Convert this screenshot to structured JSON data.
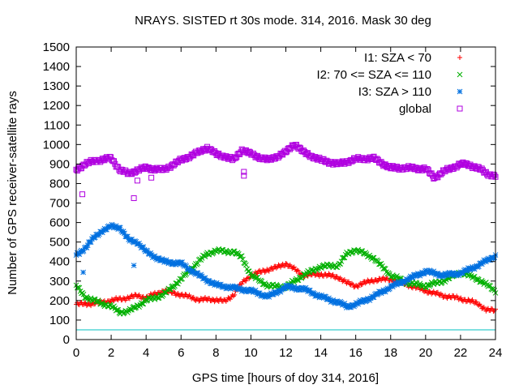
{
  "chart_data": {
    "type": "scatter",
    "title": "NRAYS. SISTED rt 30s mode. 314, 2016. Mask 30 deg",
    "xlabel": "GPS time [hours of doy 314, 2016]",
    "ylabel": "Number of GPS receiver-satellite rays",
    "xlim": [
      0,
      24
    ],
    "ylim": [
      0,
      1500
    ],
    "x_ticks": [
      "0",
      "2",
      "4",
      "6",
      "8",
      "10",
      "12",
      "14",
      "16",
      "18",
      "20",
      "22",
      "24"
    ],
    "y_ticks": [
      "0",
      "100",
      "200",
      "300",
      "400",
      "500",
      "600",
      "700",
      "800",
      "900",
      "1000",
      "1100",
      "1200",
      "1300",
      "1400",
      "1500"
    ],
    "grid": false,
    "legend_position": "top-right",
    "threshold_line": {
      "value": 50,
      "color": "#00c0c0"
    },
    "series": [
      {
        "name": "I1: SZA < 70",
        "color": "#ff0000",
        "marker": "plus",
        "x": [
          0,
          1,
          2,
          3,
          3.5,
          4,
          5,
          6,
          7,
          8,
          8.5,
          9,
          9.5,
          10,
          11,
          11.5,
          12,
          12.5,
          13,
          14,
          15,
          15.5,
          16,
          17,
          18,
          19,
          20,
          21,
          22,
          23,
          23.5,
          24
        ],
        "y": [
          180,
          185,
          200,
          215,
          225,
          215,
          250,
          230,
          205,
          205,
          195,
          230,
          290,
          330,
          360,
          370,
          390,
          360,
          330,
          335,
          320,
          290,
          275,
          305,
          310,
          280,
          250,
          225,
          210,
          185,
          150,
          150
        ]
      },
      {
        "name": "I2: 70 <= SZA <= 110",
        "color": "#00b000",
        "marker": "cross",
        "x": [
          0,
          0.5,
          1,
          2,
          2.5,
          3,
          4,
          5,
          6,
          7,
          7.5,
          8,
          9,
          9.5,
          10,
          11,
          12,
          13,
          14,
          15,
          15.5,
          16,
          17,
          18,
          19,
          20,
          21,
          22,
          23,
          24
        ],
        "y": [
          275,
          220,
          200,
          170,
          140,
          145,
          200,
          230,
          310,
          400,
          440,
          455,
          450,
          420,
          330,
          275,
          270,
          330,
          375,
          380,
          440,
          460,
          420,
          330,
          290,
          275,
          300,
          345,
          310,
          250
        ]
      },
      {
        "name": "I3: SZA > 110",
        "color": "#0070e0",
        "marker": "star",
        "x": [
          0,
          0.5,
          1,
          1.5,
          2,
          2.5,
          3,
          3.5,
          4,
          5,
          6,
          7,
          8,
          9,
          10,
          11,
          12,
          13,
          14,
          15,
          15.5,
          16,
          17,
          18,
          19,
          20,
          21,
          22,
          23,
          24
        ],
        "y": [
          430,
          470,
          520,
          560,
          580,
          575,
          510,
          500,
          450,
          400,
          390,
          330,
          280,
          265,
          250,
          220,
          270,
          260,
          220,
          190,
          170,
          180,
          220,
          270,
          310,
          350,
          330,
          340,
          380,
          430
        ]
      },
      {
        "name": "global",
        "color": "#b000e0",
        "marker": "square",
        "x": [
          0,
          0.5,
          1,
          2,
          2.5,
          3,
          3.5,
          4,
          5,
          6,
          7,
          7.5,
          8,
          8.5,
          9,
          9.5,
          10,
          11,
          12,
          12.5,
          13,
          14,
          15,
          16,
          17,
          18,
          19,
          20,
          20.5,
          21,
          22,
          22.5,
          23,
          23.5,
          24
        ],
        "y": [
          870,
          900,
          915,
          930,
          870,
          850,
          870,
          880,
          870,
          920,
          960,
          985,
          950,
          940,
          920,
          975,
          950,
          920,
          960,
          1005,
          960,
          920,
          900,
          925,
          930,
          880,
          880,
          875,
          830,
          860,
          900,
          895,
          880,
          850,
          840
        ]
      }
    ],
    "outliers": [
      {
        "series": "global",
        "x": 0.35,
        "y": 745
      },
      {
        "series": "global",
        "x": 3.3,
        "y": 725
      },
      {
        "series": "global",
        "x": 3.5,
        "y": 815
      },
      {
        "series": "global",
        "x": 4.3,
        "y": 830
      },
      {
        "series": "global",
        "x": 9.6,
        "y": 840
      },
      {
        "series": "global",
        "x": 9.6,
        "y": 860
      },
      {
        "series": "I3: SZA > 110",
        "x": 0.4,
        "y": 345
      },
      {
        "series": "I3: SZA > 110",
        "x": 3.3,
        "y": 380
      }
    ]
  }
}
